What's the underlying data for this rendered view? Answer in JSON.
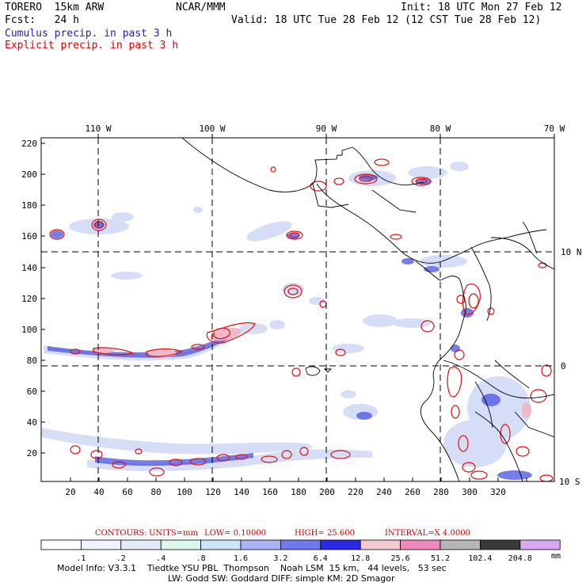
{
  "header": {
    "model": "TORERO  15km ARW",
    "org": "NCAR/MMM",
    "init": "Init: 18 UTC Mon 27 Feb 12",
    "fcst": "Fcst:   24 h",
    "valid": "Valid: 18 UTC Tue 28 Feb 12 (12 CST Tue 28 Feb 12)",
    "cumulus": "Cumulus precip. in past 3 h",
    "explicit": "Explicit precip. in past 3 h"
  },
  "colors": {
    "cumulus_title": "#2020c0",
    "explicit_title": "#e00000",
    "contour": "#e01010",
    "stats": "#d00000"
  },
  "axes": {
    "top_lon": [
      "110 W",
      "100 W",
      "90 W",
      "80 W",
      "70 W"
    ],
    "right_lat": [
      "10 N",
      "0",
      "10 S"
    ],
    "left_ticks": [
      "220",
      "200",
      "180",
      "160",
      "140",
      "120",
      "100",
      "80",
      "60",
      "40",
      "20"
    ],
    "bottom_ticks": [
      "20",
      "40",
      "60",
      "80",
      "100",
      "120",
      "140",
      "160",
      "180",
      "200",
      "220",
      "240",
      "260",
      "280",
      "300",
      "320"
    ]
  },
  "contour_info": {
    "label": "CONTOURS:",
    "units": "UNITS=mm",
    "low": "LOW= 0.10000",
    "high": "HIGH=  25.600",
    "interval": "INTERVAL=X  4.0000"
  },
  "legend": {
    "unit": "mm",
    "labels": [
      ".1",
      ".2",
      ".4",
      ".8",
      "1.6",
      "3.2",
      "6.4",
      "12.8",
      "25.6",
      "51.2",
      "102.4",
      "204.8"
    ],
    "colors": [
      "#ffffff",
      "#f0f4ff",
      "#e4eefb",
      "#dcf7ee",
      "#cde4f8",
      "#a8b4f4",
      "#6f78ee",
      "#2a2ae6",
      "#f6c8cf",
      "#ee88bd",
      "#b5b5b5",
      "#3a3a3a",
      "#d8a8f4"
    ]
  },
  "footer": {
    "line1": "Model Info: V3.3.1    Tiedtke YSU PBL  Thompson    Noah LSM  15 km,   44 levels,   53 sec",
    "line2": "LW: Godd SW: Goddard DIFF: simple KM: 2D Smagor"
  }
}
